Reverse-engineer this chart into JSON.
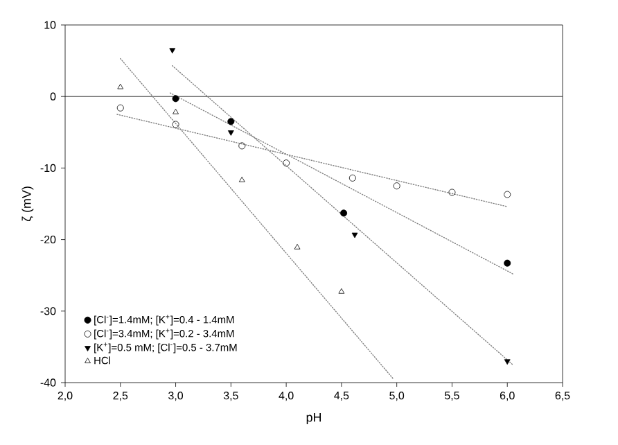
{
  "chart_data": {
    "type": "scatter",
    "xlabel": "pH",
    "ylabel": "ζ (mV)",
    "xlim": [
      2.0,
      6.5
    ],
    "ylim": [
      -40,
      10
    ],
    "xticks": [
      {
        "value": 2.0,
        "label": "2,0"
      },
      {
        "value": 2.5,
        "label": "2,5"
      },
      {
        "value": 3.0,
        "label": "3,0"
      },
      {
        "value": 3.5,
        "label": "3,5"
      },
      {
        "value": 4.0,
        "label": "4,0"
      },
      {
        "value": 4.5,
        "label": "4,5"
      },
      {
        "value": 5.0,
        "label": "5,0"
      },
      {
        "value": 5.5,
        "label": "5,5"
      },
      {
        "value": 6.0,
        "label": "6,0"
      },
      {
        "value": 6.5,
        "label": "6,5"
      }
    ],
    "yticks": [
      -40,
      -30,
      -20,
      -10,
      0,
      10
    ],
    "legend": "bottom left",
    "ref_lines": [
      {
        "axis": "y",
        "value": 0,
        "color": "#000000",
        "line_style": "solid"
      }
    ],
    "series": [
      {
        "name": "[Cl$^{-}$]=1.4mM; [K$^{+}$]=0.4 - 1.4mM",
        "marker": "circle",
        "color": "#000000",
        "x": [
          3.0,
          3.5,
          4.52,
          6.0
        ],
        "values": [
          -0.3,
          -3.5,
          -16.3,
          -23.3
        ]
      },
      {
        "name": "[Cl$^{-}$]=3.4mM; [K$^{+}$]=0.2 - 3.4mM",
        "marker": "circle open",
        "color": "#000000",
        "x": [
          2.5,
          3.0,
          3.6,
          4.0,
          4.6,
          5.0,
          5.5,
          6.0
        ],
        "values": [
          -1.6,
          -3.9,
          -6.9,
          -9.3,
          -11.4,
          -12.5,
          -13.4,
          -13.7
        ]
      },
      {
        "name": "[K$^{+}$]=0.5 mM; [Cl$^{-}$]=0.5 - 3.7mM",
        "marker": "triangle down",
        "color": "#000000",
        "x": [
          2.97,
          3.5,
          4.62,
          6.0
        ],
        "values": [
          6.5,
          -5.0,
          -19.3,
          -37.0
        ]
      },
      {
        "name": "HCl",
        "marker": "triangle open",
        "color": "#000000",
        "x": [
          2.5,
          3.0,
          3.6,
          4.1,
          4.5
        ],
        "values": [
          1.3,
          -2.2,
          -11.7,
          -21.1,
          -27.3
        ]
      },
      {
        "type": "line",
        "marker": "none",
        "line_style": "dotted",
        "color": "#808080",
        "x": [
          2.95,
          6.05
        ],
        "values": [
          0.5,
          -24.8
        ]
      },
      {
        "type": "line",
        "marker": "none",
        "line_style": "dotted",
        "color": "#808080",
        "x": [
          2.47,
          6.0
        ],
        "values": [
          -2.5,
          -15.4
        ]
      },
      {
        "type": "line",
        "marker": "none",
        "line_style": "dotted",
        "color": "#808080",
        "x": [
          2.97,
          6.05
        ],
        "values": [
          4.3,
          -37.5
        ]
      },
      {
        "type": "line",
        "marker": "none",
        "line_style": "dotted",
        "color": "#808080",
        "x": [
          2.5,
          4.97
        ],
        "values": [
          5.3,
          -39.5
        ]
      }
    ]
  }
}
